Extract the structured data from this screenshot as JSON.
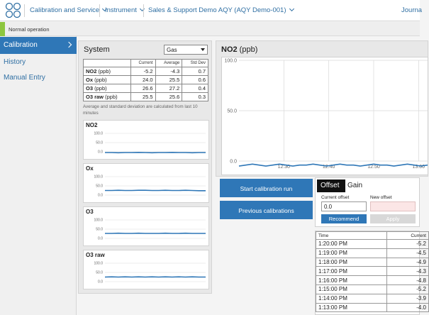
{
  "nav": {
    "items": [
      {
        "label": "Calibration and Service",
        "has_dropdown": true
      },
      {
        "label": "Instrument",
        "has_dropdown": true
      },
      {
        "label": "Sales & Support Demo AQY (AQY Demo-001)",
        "has_dropdown": true
      },
      {
        "label": "Journa",
        "has_dropdown": false
      }
    ]
  },
  "status": {
    "text": "Normal operation",
    "color": "#8dc63f"
  },
  "sidebar": {
    "items": [
      {
        "label": "Calibration",
        "active": true
      },
      {
        "label": "History",
        "active": false
      },
      {
        "label": "Manual Entry",
        "active": false
      }
    ]
  },
  "system": {
    "title": "System",
    "select_value": "Gas",
    "table": {
      "headers": [
        "",
        "Current",
        "Average",
        "Std Dev"
      ],
      "rows": [
        {
          "name": "NO2",
          "unit": " (ppb)",
          "current": "-5.2",
          "average": "-4.3",
          "std": "0.7"
        },
        {
          "name": "Ox",
          "unit": " (ppb)",
          "current": "24.0",
          "average": "25.5",
          "std": "0.6"
        },
        {
          "name": "O3",
          "unit": " (ppb)",
          "current": "26.6",
          "average": "27.2",
          "std": "0.4"
        },
        {
          "name": "O3 raw",
          "unit": " (ppb)",
          "current": "25.5",
          "average": "25.6",
          "std": "0.3"
        }
      ]
    },
    "note": "Average and standard deviation are calculated from last 10 minutes"
  },
  "mini_charts": [
    {
      "title": "NO2",
      "ticks": [
        "100.0",
        "50.0",
        "0.0"
      ]
    },
    {
      "title": "Ox",
      "ticks": [
        "100.0",
        "50.0",
        "0.0"
      ]
    },
    {
      "title": "O3",
      "ticks": [
        "100.0",
        "50.0",
        "0.0"
      ]
    },
    {
      "title": "O3 raw",
      "ticks": [
        "100.0",
        "50.0",
        "0.0"
      ]
    }
  ],
  "chart_data": [
    {
      "type": "line",
      "title": "NO2",
      "ylabel": "(ppb)",
      "ylim": [
        0,
        100
      ],
      "y_ticks": [
        "100.0",
        "50.0",
        "0.0"
      ],
      "x_ticks": [
        "12:30",
        "12:40",
        "12:50",
        "13:00"
      ],
      "grid": true,
      "series": [
        {
          "values": [
            -5,
            -4,
            -3,
            -4,
            -5,
            -4,
            -3,
            -4,
            -5,
            -4,
            -4,
            -3,
            -4,
            -5,
            -4,
            -3,
            -4,
            -4,
            -5,
            -4,
            -3,
            -4,
            -4,
            -5,
            -4,
            -3,
            -4,
            -5,
            -4
          ]
        }
      ]
    },
    {
      "type": "line",
      "title": "NO2",
      "ylim": [
        0,
        100
      ],
      "y_ticks": [
        "100.0",
        "50.0",
        "0.0"
      ],
      "series": [
        {
          "values": [
            -4,
            -4,
            -5,
            -4,
            -4,
            -3,
            -4,
            -5,
            -4,
            -4,
            -3,
            -4,
            -4,
            -5,
            -4,
            -4
          ]
        }
      ]
    },
    {
      "type": "line",
      "title": "Ox",
      "ylim": [
        0,
        100
      ],
      "y_ticks": [
        "100.0",
        "50.0",
        "0.0"
      ],
      "series": [
        {
          "values": [
            25,
            25,
            26,
            25,
            25,
            26,
            26,
            25,
            25,
            26,
            25,
            25,
            26,
            25,
            24,
            24
          ]
        }
      ]
    },
    {
      "type": "line",
      "title": "O3",
      "ylim": [
        0,
        100
      ],
      "y_ticks": [
        "100.0",
        "50.0",
        "0.0"
      ],
      "series": [
        {
          "values": [
            27,
            27,
            28,
            27,
            27,
            28,
            27,
            27,
            27,
            28,
            27,
            27,
            28,
            27,
            27,
            27
          ]
        }
      ]
    },
    {
      "type": "line",
      "title": "O3 raw",
      "ylim": [
        0,
        100
      ],
      "y_ticks": [
        "100.0",
        "50.0",
        "0.0"
      ],
      "series": [
        {
          "values": [
            25,
            26,
            25,
            26,
            25,
            26,
            25,
            26,
            25,
            26,
            25,
            26,
            25,
            26,
            25,
            25
          ]
        }
      ]
    }
  ],
  "main_chart": {
    "title_bold": "NO2",
    "title_unit": " (ppb)"
  },
  "buttons": {
    "start": "Start calibration run",
    "previous": "Previous calibrations"
  },
  "calibration": {
    "tabs": [
      "Offset",
      "Gain"
    ],
    "current_offset_label": "Current offset",
    "current_offset_value": "0.0",
    "new_offset_label": "New offset",
    "new_offset_value": "",
    "recommend": "Recommend",
    "apply": "Apply",
    "accent": "#2f77b7"
  },
  "readings": {
    "headers": [
      "Time",
      "Current"
    ],
    "rows": [
      {
        "time": "1:20:00 PM",
        "current": "-5.2"
      },
      {
        "time": "1:19:00 PM",
        "current": "-4.5"
      },
      {
        "time": "1:18:00 PM",
        "current": "-4.9"
      },
      {
        "time": "1:17:00 PM",
        "current": "-4.3"
      },
      {
        "time": "1:16:00 PM",
        "current": "-4.8"
      },
      {
        "time": "1:15:00 PM",
        "current": "-5.2"
      },
      {
        "time": "1:14:00 PM",
        "current": "-3.9"
      },
      {
        "time": "1:13:00 PM",
        "current": "-4.0"
      }
    ]
  }
}
